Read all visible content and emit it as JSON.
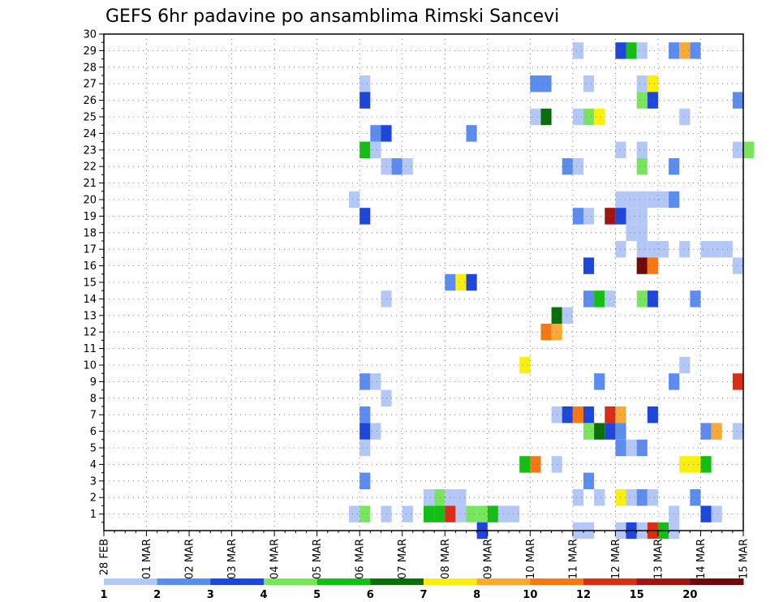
{
  "chart_data": {
    "type": "heatmap",
    "title": "GEFS 6hr padavine po ansamblima Rimski Sancevi",
    "xlabel": "",
    "ylabel": "",
    "x_ticks": [
      "28 FEB",
      "01 MAR",
      "02 MAR",
      "03 MAR",
      "04 MAR",
      "05 MAR",
      "06 MAR",
      "07 MAR",
      "08 MAR",
      "09 MAR",
      "10 MAR",
      "11 MAR",
      "12 MAR",
      "13 MAR",
      "14 MAR",
      "15 MAR"
    ],
    "x_range": [
      "28 FEB 00Z",
      "15 MAR 00Z"
    ],
    "y_ticks": [
      1,
      2,
      3,
      4,
      5,
      6,
      7,
      8,
      9,
      10,
      11,
      12,
      13,
      14,
      15,
      16,
      17,
      18,
      19,
      20,
      21,
      22,
      23,
      24,
      25,
      26,
      27,
      28,
      29,
      30
    ],
    "y_range": [
      0,
      30
    ],
    "grid": true,
    "legend": {
      "placement": "bottom",
      "labels": [
        "1",
        "2",
        "3",
        "4",
        "5",
        "6",
        "7",
        "8",
        "10",
        "12",
        "15",
        "20"
      ],
      "colors": [
        "#b4c8f8",
        "#5c8cf0",
        "#1e46dc",
        "#78e65a",
        "#14be14",
        "#0a6e0a",
        "#faf00a",
        "#faaa32",
        "#f57814",
        "#dc2d14",
        "#a01414",
        "#6e0a0a"
      ]
    },
    "cells": [
      [
        29,
        11.0,
        0
      ],
      [
        29,
        12.0,
        2
      ],
      [
        29,
        12.25,
        4
      ],
      [
        29,
        12.5,
        0
      ],
      [
        29,
        13.25,
        1
      ],
      [
        29,
        13.5,
        7
      ],
      [
        29,
        13.75,
        1
      ],
      [
        27,
        6.0,
        0
      ],
      [
        27,
        10.0,
        1
      ],
      [
        27,
        10.25,
        1
      ],
      [
        27,
        11.25,
        0
      ],
      [
        27,
        12.5,
        0
      ],
      [
        27,
        12.75,
        6
      ],
      [
        26,
        6.0,
        2
      ],
      [
        26,
        12.5,
        3
      ],
      [
        26,
        12.75,
        2
      ],
      [
        26,
        14.75,
        1
      ],
      [
        25,
        10.0,
        0
      ],
      [
        25,
        10.25,
        5
      ],
      [
        25,
        11.0,
        0
      ],
      [
        25,
        11.25,
        3
      ],
      [
        25,
        11.5,
        6
      ],
      [
        25,
        13.5,
        0
      ],
      [
        24,
        6.25,
        1
      ],
      [
        24,
        6.5,
        2
      ],
      [
        24,
        8.5,
        1
      ],
      [
        23,
        6.0,
        4
      ],
      [
        23,
        6.25,
        0
      ],
      [
        23,
        12.0,
        0
      ],
      [
        23,
        12.5,
        0
      ],
      [
        23,
        14.75,
        0
      ],
      [
        23,
        15.0,
        3
      ],
      [
        22,
        6.5,
        0
      ],
      [
        22,
        6.75,
        1
      ],
      [
        22,
        7.0,
        0
      ],
      [
        22,
        10.75,
        1
      ],
      [
        22,
        11.0,
        0
      ],
      [
        22,
        12.5,
        3
      ],
      [
        22,
        13.25,
        1
      ],
      [
        20,
        5.75,
        0
      ],
      [
        20,
        12.0,
        0
      ],
      [
        20,
        12.25,
        0
      ],
      [
        20,
        12.5,
        0
      ],
      [
        20,
        12.75,
        0
      ],
      [
        20,
        13.0,
        0
      ],
      [
        20,
        13.25,
        1
      ],
      [
        19,
        6.0,
        2
      ],
      [
        19,
        11.0,
        1
      ],
      [
        19,
        11.25,
        0
      ],
      [
        19,
        11.75,
        10
      ],
      [
        19,
        12.0,
        2
      ],
      [
        19,
        12.25,
        0
      ],
      [
        19,
        12.5,
        0
      ],
      [
        18,
        12.25,
        0
      ],
      [
        18,
        12.5,
        0
      ],
      [
        17,
        12.0,
        0
      ],
      [
        17,
        12.5,
        0
      ],
      [
        17,
        12.75,
        0
      ],
      [
        17,
        13.0,
        0
      ],
      [
        17,
        13.5,
        0
      ],
      [
        17,
        14.0,
        0
      ],
      [
        17,
        14.25,
        0
      ],
      [
        17,
        14.5,
        0
      ],
      [
        16,
        11.25,
        2
      ],
      [
        16,
        12.5,
        11
      ],
      [
        16,
        12.75,
        8
      ],
      [
        16,
        14.75,
        0
      ],
      [
        15,
        8.0,
        1
      ],
      [
        15,
        8.25,
        6
      ],
      [
        15,
        8.5,
        2
      ],
      [
        14,
        6.5,
        0
      ],
      [
        14,
        11.25,
        1
      ],
      [
        14,
        11.5,
        4
      ],
      [
        14,
        11.75,
        0
      ],
      [
        14,
        12.5,
        3
      ],
      [
        14,
        12.75,
        2
      ],
      [
        14,
        13.75,
        1
      ],
      [
        13,
        10.5,
        5
      ],
      [
        13,
        10.75,
        0
      ],
      [
        12,
        10.25,
        8
      ],
      [
        12,
        10.5,
        7
      ],
      [
        10,
        9.75,
        6
      ],
      [
        10,
        13.5,
        0
      ],
      [
        9,
        6.0,
        1
      ],
      [
        9,
        6.25,
        0
      ],
      [
        9,
        11.5,
        1
      ],
      [
        9,
        13.25,
        1
      ],
      [
        9,
        14.75,
        9
      ],
      [
        8,
        6.5,
        0
      ],
      [
        7,
        6.0,
        1
      ],
      [
        7,
        10.5,
        0
      ],
      [
        7,
        10.75,
        2
      ],
      [
        7,
        11.0,
        8
      ],
      [
        7,
        11.25,
        2
      ],
      [
        7,
        11.75,
        9
      ],
      [
        7,
        12.0,
        7
      ],
      [
        7,
        12.75,
        2
      ],
      [
        6,
        6.0,
        2
      ],
      [
        6,
        6.25,
        0
      ],
      [
        6,
        11.25,
        3
      ],
      [
        6,
        11.5,
        5
      ],
      [
        6,
        11.75,
        2
      ],
      [
        6,
        12.0,
        1
      ],
      [
        6,
        14.0,
        1
      ],
      [
        6,
        14.25,
        7
      ],
      [
        6,
        14.75,
        0
      ],
      [
        5,
        6.0,
        0
      ],
      [
        5,
        12.0,
        1
      ],
      [
        5,
        12.25,
        0
      ],
      [
        5,
        12.5,
        1
      ],
      [
        4,
        9.75,
        4
      ],
      [
        4,
        10.0,
        8
      ],
      [
        4,
        10.5,
        0
      ],
      [
        4,
        13.5,
        6
      ],
      [
        4,
        13.75,
        6
      ],
      [
        4,
        14.0,
        4
      ],
      [
        3,
        6.0,
        1
      ],
      [
        3,
        11.25,
        1
      ],
      [
        2,
        7.5,
        0
      ],
      [
        2,
        7.75,
        3
      ],
      [
        2,
        8.0,
        0
      ],
      [
        2,
        8.25,
        0
      ],
      [
        2,
        11.0,
        0
      ],
      [
        2,
        11.5,
        0
      ],
      [
        2,
        12.0,
        6
      ],
      [
        2,
        12.25,
        0
      ],
      [
        2,
        12.5,
        1
      ],
      [
        2,
        12.75,
        0
      ],
      [
        2,
        13.75,
        1
      ],
      [
        1,
        5.75,
        0
      ],
      [
        1,
        6.0,
        3
      ],
      [
        1,
        6.5,
        0
      ],
      [
        1,
        7.0,
        0
      ],
      [
        1,
        7.5,
        4
      ],
      [
        1,
        7.75,
        4
      ],
      [
        1,
        8.0,
        9
      ],
      [
        1,
        8.25,
        0
      ],
      [
        1,
        8.5,
        3
      ],
      [
        1,
        8.75,
        3
      ],
      [
        1,
        9.0,
        4
      ],
      [
        1,
        9.25,
        0
      ],
      [
        1,
        9.5,
        0
      ],
      [
        1,
        13.25,
        0
      ],
      [
        1,
        14.0,
        2
      ],
      [
        1,
        14.25,
        0
      ],
      [
        0,
        8.75,
        2
      ],
      [
        0,
        11.0,
        0
      ],
      [
        0,
        11.25,
        0
      ],
      [
        0,
        12.0,
        0
      ],
      [
        0,
        12.25,
        2
      ],
      [
        0,
        12.5,
        0
      ],
      [
        0,
        12.75,
        9
      ],
      [
        0,
        13.0,
        4
      ],
      [
        0,
        13.25,
        0
      ]
    ]
  }
}
